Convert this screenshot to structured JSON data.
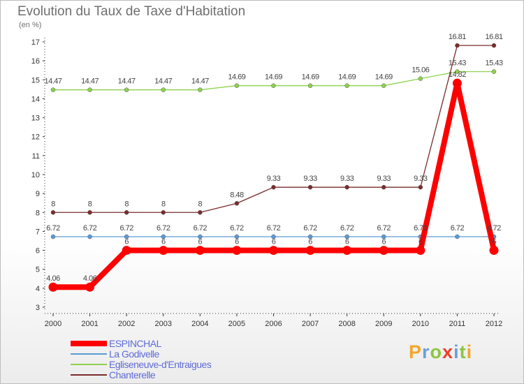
{
  "title": "Evolution du Taux de Taxe d'Habitation",
  "subtitle": "(en %)",
  "logo": {
    "letters": [
      {
        "ch": "P",
        "color": "#f2a72b"
      },
      {
        "ch": "r",
        "color": "#6aa0d8"
      },
      {
        "ch": "o",
        "color": "#8cc63e"
      },
      {
        "ch": "x",
        "color": "#e8412c"
      },
      {
        "ch": "i",
        "color": "#6aa0d8"
      },
      {
        "ch": "t",
        "color": "#8cc63e"
      },
      {
        "ch": "i",
        "color": "#f2a72b"
      }
    ]
  },
  "chart_data": {
    "type": "line",
    "title": "Evolution du Taux de Taxe d'Habitation",
    "ylabel": "(en %)",
    "xlabel": "",
    "x": [
      "2000",
      "2001",
      "2002",
      "2003",
      "2004",
      "2005",
      "2006",
      "2007",
      "2008",
      "2009",
      "2010",
      "2011",
      "2012"
    ],
    "ylim": [
      3,
      17
    ],
    "yticks": [
      3,
      4,
      5,
      6,
      7,
      8,
      9,
      10,
      11,
      12,
      13,
      14,
      15,
      16,
      17
    ],
    "grid": false,
    "legend_position": "bottom-left",
    "series": [
      {
        "name": "ESPINCHAL",
        "color": "#ff0000",
        "bold": true,
        "values": [
          4.06,
          4.06,
          6,
          6,
          6,
          6,
          6,
          6,
          6,
          6,
          6,
          14.82,
          6
        ],
        "labels": [
          "4.06",
          "4.06",
          "6",
          "6",
          "6",
          "6",
          "6",
          "6",
          "6",
          "6",
          "6",
          "14.82",
          "6"
        ]
      },
      {
        "name": "La Godivelle",
        "color": "#5b9bd5",
        "bold": false,
        "values": [
          6.72,
          6.72,
          6.72,
          6.72,
          6.72,
          6.72,
          6.72,
          6.72,
          6.72,
          6.72,
          6.72,
          6.72,
          6.72
        ],
        "labels": [
          "6.72",
          "6.72",
          "6.72",
          "6.72",
          "6.72",
          "6.72",
          "6.72",
          "6.72",
          "6.72",
          "6.72",
          "6.72",
          "6.72",
          "6.72"
        ]
      },
      {
        "name": "Egliseneuve-d'Entraigues",
        "color": "#8fd14f",
        "bold": false,
        "values": [
          14.47,
          14.47,
          14.47,
          14.47,
          14.47,
          14.69,
          14.69,
          14.69,
          14.69,
          14.69,
          15.06,
          15.43,
          15.43
        ],
        "labels": [
          "14.47",
          "14.47",
          "14.47",
          "14.47",
          "14.47",
          "14.69",
          "14.69",
          "14.69",
          "14.69",
          "14.69",
          "15.06",
          "15.43",
          "15.43"
        ]
      },
      {
        "name": "Chanterelle",
        "color": "#7b2c2c",
        "bold": false,
        "values": [
          8,
          8,
          8,
          8,
          8,
          8.48,
          9.33,
          9.33,
          9.33,
          9.33,
          9.33,
          16.81,
          16.81
        ],
        "labels": [
          "8",
          "8",
          "8",
          "8",
          "8",
          "8.48",
          "9.33",
          "9.33",
          "9.33",
          "9.33",
          "9.33",
          "16.81",
          "16.81"
        ]
      }
    ]
  }
}
